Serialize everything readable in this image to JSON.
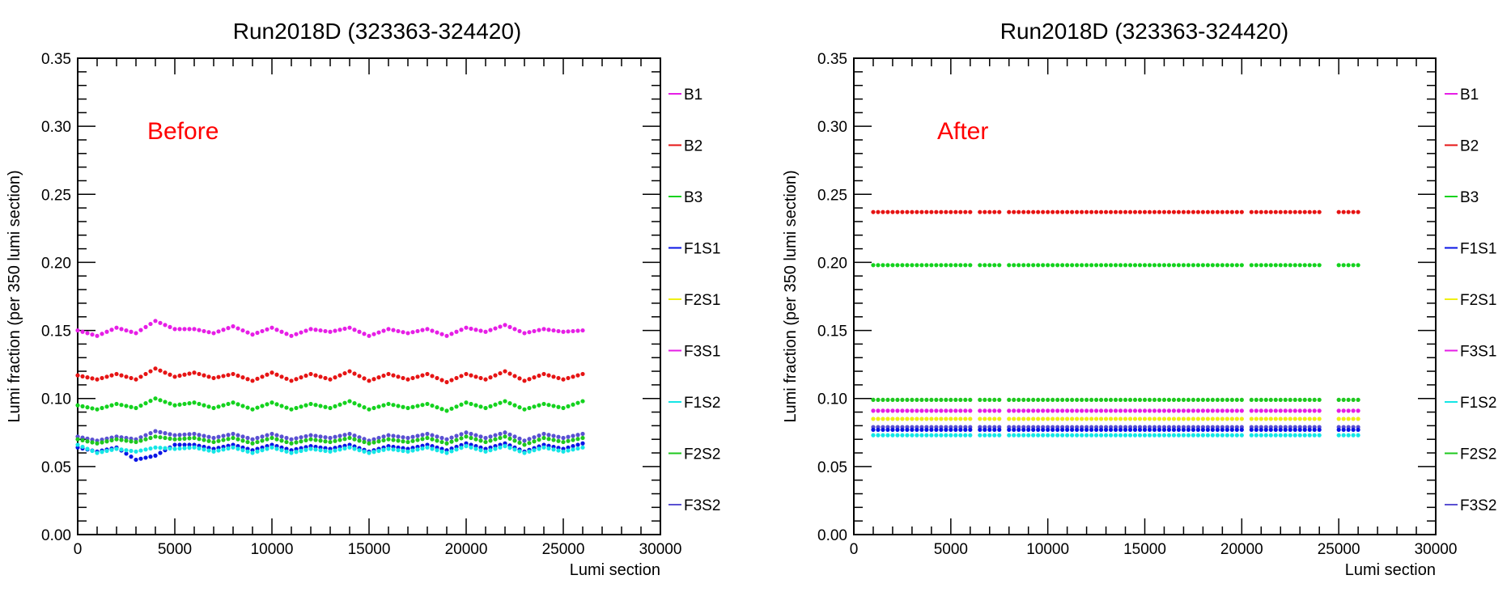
{
  "legend_colors": {
    "B1": "#e61ee6",
    "B2": "#e61414",
    "B3": "#14d21e",
    "F1S1": "#0a14e6",
    "F2S1": "#f0f014",
    "F3S1": "#e61ee6",
    "F1S2": "#14e6e6",
    "F2S2": "#1ec81e",
    "F3S2": "#5a50d2"
  },
  "chart_data": [
    {
      "type": "scatter",
      "title": "Run2018D (323363-324420)",
      "annotation": "Before",
      "annotation_color": "#ff0000",
      "xlabel": "Lumi section",
      "ylabel": "Lumi fraction (per 350 lumi section)",
      "xlim": [
        0,
        30000
      ],
      "ylim": [
        0,
        0.35
      ],
      "x_ticks": [
        "0",
        "5000",
        "10000",
        "15000",
        "20000",
        "25000",
        "30000"
      ],
      "y_ticks": [
        "0.00",
        "0.05",
        "0.10",
        "0.15",
        "0.20",
        "0.25",
        "0.30",
        "0.35"
      ],
      "legend_placement": "right",
      "legend": [
        "B1",
        "B2",
        "B3",
        "F1S1",
        "F2S1",
        "F3S1",
        "F1S2",
        "F2S2",
        "F3S2"
      ],
      "series": [
        {
          "name": "F3S1",
          "color": "#e61ee6",
          "x": [
            0,
            1000,
            2000,
            3000,
            4000,
            5000,
            6000,
            7000,
            8000,
            9000,
            10000,
            11000,
            12000,
            13000,
            14000,
            15000,
            16000,
            17000,
            18000,
            19000,
            20000,
            21000,
            22000,
            23000,
            24000,
            25000,
            26000
          ],
          "y": [
            0.15,
            0.146,
            0.152,
            0.148,
            0.157,
            0.151,
            0.151,
            0.148,
            0.153,
            0.147,
            0.152,
            0.146,
            0.151,
            0.149,
            0.152,
            0.146,
            0.151,
            0.148,
            0.151,
            0.146,
            0.152,
            0.149,
            0.154,
            0.148,
            0.151,
            0.149,
            0.15
          ]
        },
        {
          "name": "B2",
          "color": "#e61414",
          "x": [
            0,
            1000,
            2000,
            3000,
            4000,
            5000,
            6000,
            7000,
            8000,
            9000,
            10000,
            11000,
            12000,
            13000,
            14000,
            15000,
            16000,
            17000,
            18000,
            19000,
            20000,
            21000,
            22000,
            23000,
            24000,
            25000,
            26000
          ],
          "y": [
            0.117,
            0.114,
            0.118,
            0.114,
            0.122,
            0.116,
            0.119,
            0.115,
            0.118,
            0.113,
            0.119,
            0.113,
            0.118,
            0.114,
            0.12,
            0.113,
            0.118,
            0.114,
            0.118,
            0.112,
            0.118,
            0.114,
            0.12,
            0.113,
            0.118,
            0.114,
            0.118
          ]
        },
        {
          "name": "B3",
          "color": "#14d21e",
          "x": [
            0,
            1000,
            2000,
            3000,
            4000,
            5000,
            6000,
            7000,
            8000,
            9000,
            10000,
            11000,
            12000,
            13000,
            14000,
            15000,
            16000,
            17000,
            18000,
            19000,
            20000,
            21000,
            22000,
            23000,
            24000,
            25000,
            26000
          ],
          "y": [
            0.095,
            0.092,
            0.096,
            0.093,
            0.1,
            0.095,
            0.097,
            0.093,
            0.097,
            0.092,
            0.097,
            0.092,
            0.096,
            0.093,
            0.098,
            0.092,
            0.096,
            0.093,
            0.096,
            0.091,
            0.097,
            0.093,
            0.098,
            0.092,
            0.096,
            0.093,
            0.098
          ]
        },
        {
          "name": "F3S2",
          "color": "#5a50d2",
          "x": [
            0,
            1000,
            2000,
            3000,
            4000,
            5000,
            6000,
            7000,
            8000,
            9000,
            10000,
            11000,
            12000,
            13000,
            14000,
            15000,
            16000,
            17000,
            18000,
            19000,
            20000,
            21000,
            22000,
            23000,
            24000,
            25000,
            26000
          ],
          "y": [
            0.072,
            0.069,
            0.072,
            0.07,
            0.076,
            0.073,
            0.074,
            0.071,
            0.074,
            0.07,
            0.074,
            0.07,
            0.073,
            0.071,
            0.074,
            0.069,
            0.073,
            0.071,
            0.074,
            0.07,
            0.075,
            0.071,
            0.075,
            0.069,
            0.074,
            0.071,
            0.074
          ]
        },
        {
          "name": "F2S2",
          "color": "#1ec81e",
          "x": [
            0,
            1000,
            2000,
            3000,
            4000,
            5000,
            6000,
            7000,
            8000,
            9000,
            10000,
            11000,
            12000,
            13000,
            14000,
            15000,
            16000,
            17000,
            18000,
            19000,
            20000,
            21000,
            22000,
            23000,
            24000,
            25000,
            26000
          ],
          "y": [
            0.07,
            0.067,
            0.07,
            0.068,
            0.072,
            0.07,
            0.071,
            0.068,
            0.071,
            0.067,
            0.071,
            0.067,
            0.07,
            0.068,
            0.071,
            0.067,
            0.07,
            0.068,
            0.071,
            0.067,
            0.072,
            0.068,
            0.072,
            0.066,
            0.071,
            0.068,
            0.071
          ]
        },
        {
          "name": "F1S1",
          "color": "#0a14e6",
          "x": [
            0,
            1000,
            2000,
            3000,
            4000,
            5000,
            6000,
            7000,
            8000,
            9000,
            10000,
            11000,
            12000,
            13000,
            14000,
            15000,
            16000,
            17000,
            18000,
            19000,
            20000,
            21000,
            22000,
            23000,
            24000,
            25000,
            26000
          ],
          "y": [
            0.064,
            0.061,
            0.064,
            0.055,
            0.058,
            0.066,
            0.066,
            0.063,
            0.066,
            0.062,
            0.066,
            0.062,
            0.065,
            0.063,
            0.066,
            0.061,
            0.065,
            0.063,
            0.066,
            0.062,
            0.067,
            0.063,
            0.067,
            0.061,
            0.066,
            0.063,
            0.067
          ]
        },
        {
          "name": "F1S2",
          "color": "#14e6e6",
          "x": [
            0,
            1000,
            2000,
            3000,
            4000,
            5000,
            6000,
            7000,
            8000,
            9000,
            10000,
            11000,
            12000,
            13000,
            14000,
            15000,
            16000,
            17000,
            18000,
            19000,
            20000,
            21000,
            22000,
            23000,
            24000,
            25000,
            26000
          ],
          "y": [
            0.066,
            0.06,
            0.063,
            0.061,
            0.064,
            0.063,
            0.064,
            0.061,
            0.064,
            0.06,
            0.064,
            0.06,
            0.063,
            0.061,
            0.064,
            0.06,
            0.063,
            0.061,
            0.064,
            0.06,
            0.065,
            0.061,
            0.065,
            0.06,
            0.064,
            0.061,
            0.064
          ]
        }
      ]
    },
    {
      "type": "scatter",
      "title": "Run2018D (323363-324420)",
      "annotation": "After",
      "annotation_color": "#ff0000",
      "xlabel": "Lumi section",
      "ylabel": "Lumi fraction (per 350 lumi section)",
      "xlim": [
        0,
        30000
      ],
      "ylim": [
        0,
        0.35
      ],
      "x_ticks": [
        "0",
        "5000",
        "10000",
        "15000",
        "20000",
        "25000",
        "30000"
      ],
      "y_ticks": [
        "0.00",
        "0.05",
        "0.10",
        "0.15",
        "0.20",
        "0.25",
        "0.30",
        "0.35"
      ],
      "legend_placement": "right",
      "legend": [
        "B1",
        "B2",
        "B3",
        "F1S1",
        "F2S1",
        "F3S1",
        "F1S2",
        "F2S2",
        "F3S2"
      ],
      "series": [
        {
          "name": "B2",
          "color": "#e61414",
          "x_start": 1000,
          "x_end": 26200,
          "gaps": [
            [
              6000,
              6400
            ],
            [
              7700,
              8000
            ],
            [
              20000,
              20500
            ],
            [
              24100,
              24800
            ]
          ],
          "y": 0.237
        },
        {
          "name": "B3",
          "color": "#14d21e",
          "x_start": 1000,
          "x_end": 26200,
          "gaps": [
            [
              6000,
              6400
            ],
            [
              7700,
              8000
            ],
            [
              20000,
              20500
            ],
            [
              24100,
              24800
            ]
          ],
          "y": 0.198
        },
        {
          "name": "F2S2",
          "color": "#1ec81e",
          "x_start": 1000,
          "x_end": 26200,
          "gaps": [
            [
              6000,
              6400
            ],
            [
              7700,
              8000
            ],
            [
              20000,
              20500
            ],
            [
              24100,
              24800
            ]
          ],
          "y": 0.099
        },
        {
          "name": "F3S1",
          "color": "#e61ee6",
          "x_start": 1000,
          "x_end": 26200,
          "gaps": [
            [
              6000,
              6400
            ],
            [
              7700,
              8000
            ],
            [
              20000,
              20500
            ],
            [
              24100,
              24800
            ]
          ],
          "y": 0.091
        },
        {
          "name": "F2S1",
          "color": "#f0f014",
          "x_start": 1000,
          "x_end": 26200,
          "gaps": [
            [
              6000,
              6400
            ],
            [
              7700,
              8000
            ],
            [
              20000,
              20500
            ],
            [
              24100,
              24800
            ]
          ],
          "y": 0.085
        },
        {
          "name": "F3S2",
          "color": "#5a50d2",
          "x_start": 1000,
          "x_end": 26200,
          "gaps": [
            [
              6000,
              6400
            ],
            [
              7700,
              8000
            ],
            [
              20000,
              20500
            ],
            [
              24100,
              24800
            ]
          ],
          "y": 0.079
        },
        {
          "name": "F1S1",
          "color": "#0a14e6",
          "x_start": 1000,
          "x_end": 26200,
          "gaps": [
            [
              6000,
              6400
            ],
            [
              7700,
              8000
            ],
            [
              20000,
              20500
            ],
            [
              24100,
              24800
            ]
          ],
          "y": 0.077
        },
        {
          "name": "F1S2",
          "color": "#14e6e6",
          "x_start": 1000,
          "x_end": 26200,
          "gaps": [
            [
              6000,
              6400
            ],
            [
              7700,
              8000
            ],
            [
              20000,
              20500
            ],
            [
              24100,
              24800
            ]
          ],
          "y": 0.073
        }
      ]
    }
  ]
}
